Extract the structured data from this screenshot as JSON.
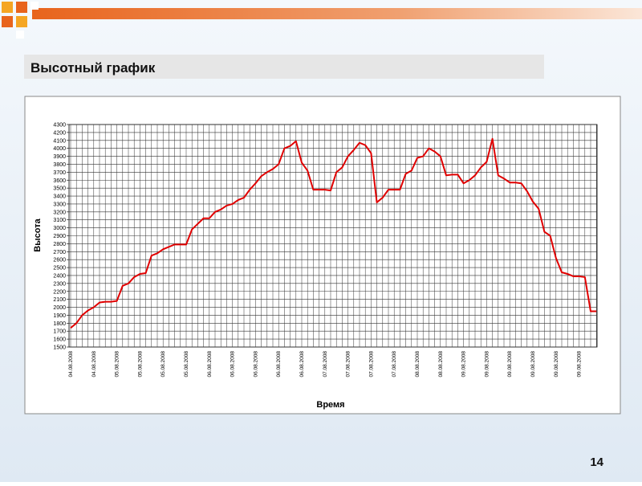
{
  "slide_title": "Высотный график",
  "page_number": "14",
  "chart_data": {
    "type": "line",
    "x_label": "Время",
    "y_label": "Высота",
    "categories": [
      "04.08.2008",
      null,
      null,
      null,
      "04.08.2008",
      null,
      null,
      null,
      "05.08.2008",
      null,
      null,
      null,
      "05.08.2008",
      null,
      null,
      null,
      "05.08.2008",
      null,
      null,
      null,
      "05.08.2008",
      null,
      null,
      null,
      "06.08.2008",
      null,
      null,
      null,
      "06.08.2008",
      null,
      null,
      null,
      "06.08.2008",
      null,
      null,
      null,
      "06.08.2008",
      null,
      null,
      null,
      "06.08.2008",
      null,
      null,
      null,
      "07.08.2008",
      null,
      null,
      null,
      "07.08.2008",
      null,
      null,
      null,
      "07.08.2008",
      null,
      null,
      null,
      "07.08.2008",
      null,
      null,
      null,
      "08.08.2008",
      null,
      null,
      null,
      "08.08.2008",
      null,
      null,
      null,
      "09.08.2008",
      null,
      null,
      null,
      "09.08.2008",
      null,
      null,
      null,
      "09.08.2008",
      null,
      null,
      null,
      "09.08.2008",
      null,
      null,
      null,
      "09.08.2008",
      null,
      null,
      null,
      "09.08.2008",
      null,
      null,
      null
    ],
    "series": [
      {
        "name": "Высота",
        "color": "#e00000",
        "values": [
          1740,
          1800,
          1900,
          1960,
          2000,
          2060,
          2070,
          2070,
          2080,
          2270,
          2300,
          2380,
          2420,
          2430,
          2650,
          2680,
          2730,
          2760,
          2790,
          2790,
          2790,
          2980,
          3050,
          3120,
          3120,
          3200,
          3230,
          3280,
          3300,
          3350,
          3380,
          3480,
          3560,
          3650,
          3700,
          3740,
          3800,
          4000,
          4030,
          4090,
          3820,
          3720,
          3480,
          3480,
          3480,
          3470,
          3700,
          3760,
          3900,
          3980,
          4070,
          4040,
          3940,
          3320,
          3380,
          3480,
          3480,
          3480,
          3680,
          3720,
          3880,
          3900,
          4000,
          3960,
          3900,
          3660,
          3670,
          3670,
          3560,
          3600,
          3660,
          3760,
          3830,
          4120,
          3660,
          3620,
          3570,
          3570,
          3560,
          3460,
          3330,
          3240,
          2950,
          2900,
          2620,
          2440,
          2420,
          2390,
          2390,
          2380,
          1950,
          1950
        ]
      }
    ],
    "ylim": [
      1500,
      4300
    ],
    "yticks": [
      1500,
      1600,
      1700,
      1800,
      1900,
      2000,
      2100,
      2200,
      2300,
      2400,
      2500,
      2600,
      2700,
      2800,
      2900,
      3000,
      3100,
      3200,
      3300,
      3400,
      3500,
      3600,
      3700,
      3800,
      3900,
      4000,
      4100,
      4200,
      4300
    ],
    "grid": true
  }
}
